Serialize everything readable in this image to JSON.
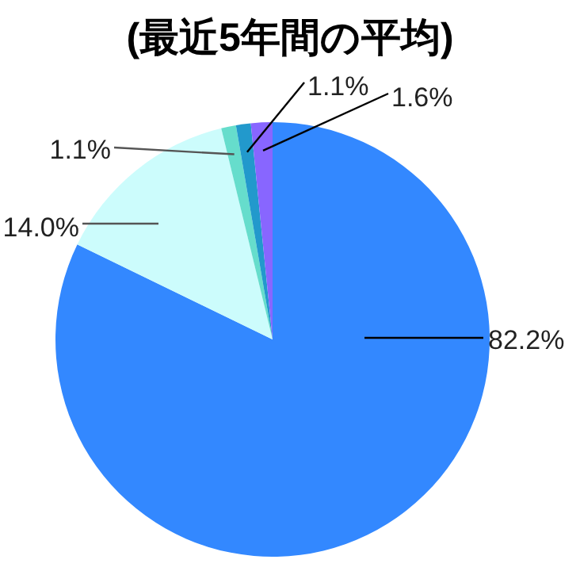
{
  "chart_data": {
    "type": "pie",
    "title": "(最近5年間の平均)",
    "categories": [
      null,
      null,
      null,
      null,
      null
    ],
    "values": [
      82.2,
      14.0,
      1.1,
      1.1,
      1.6
    ],
    "colors": [
      "#3388ff",
      "#ccfcfc",
      "#66ddcc",
      "#2299cc",
      "#8866ff"
    ],
    "value_labels": [
      "82.2%",
      "14.0%",
      "1.1%",
      "1.1%",
      "1.6%"
    ]
  }
}
